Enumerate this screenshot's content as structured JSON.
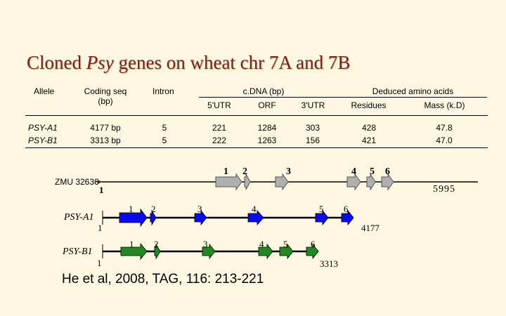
{
  "title": {
    "prefix": "Cloned ",
    "gene": "Psy",
    "suffix": " genes on wheat chr 7A and 7B"
  },
  "table": {
    "headers": {
      "allele": "Allele",
      "coding_seq": "Coding seq",
      "coding_seq_unit": "(bp)",
      "intron": "Intron",
      "cdna": "c.DNA (bp)",
      "deduced": "Deduced amino acids",
      "utr5": "5'UTR",
      "orf": "ORF",
      "utr3": "3'UTR",
      "residues": "Residues",
      "mass": "Mass (k.D)"
    },
    "rows": [
      {
        "allele": "PSY-A1",
        "coding": "4177 bp",
        "intron": "5",
        "utr5": "221",
        "orf": "1284",
        "utr3": "303",
        "residues": "428",
        "mass": "47.8"
      },
      {
        "allele": "PSY-B1",
        "coding": "3313 bp",
        "intron": "5",
        "utr5": "222",
        "orf": "1263",
        "utr3": "156",
        "residues": "421",
        "mass": "47.0"
      }
    ]
  },
  "diagram": {
    "zmu": {
      "label": "ZMU 32636",
      "start": "1",
      "end": "5995",
      "exons": [
        "1",
        "2",
        "3",
        "4",
        "5",
        "6"
      ],
      "color": "#b0b0b0"
    },
    "psy_a1": {
      "label": "PSY-A1",
      "start": "1",
      "end": "4177",
      "exons": [
        "1",
        "2",
        "3",
        "4",
        "5",
        "6"
      ],
      "color": "#0a0af0"
    },
    "psy_b1": {
      "label": "PSY-B1",
      "start": "1",
      "end": "3313",
      "exons": [
        "1",
        "2",
        "3",
        "4",
        "5",
        "6"
      ],
      "color": "#1f8a1f"
    }
  },
  "citation": "He et al, 2008, TAG, 116: 213-221"
}
